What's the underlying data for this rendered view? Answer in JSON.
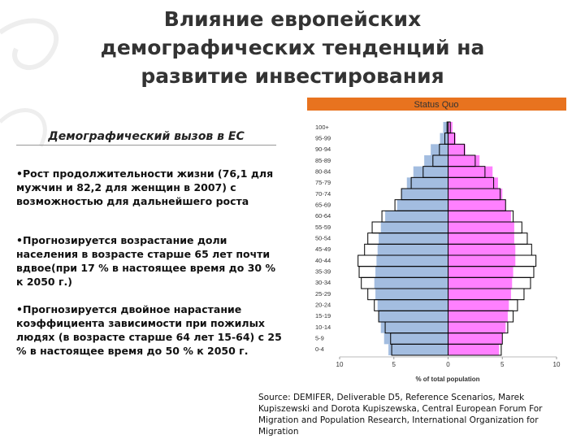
{
  "slide": {
    "title": "Влияние европейских демографических тенденций на развитие инвестирования",
    "subtitle": "Демографический вызов в ЕС",
    "bullets": [
      "•Рост продолжительности жизни (76,1 для мужчин и 82,2 для женщин в 2007) с возможностью для дальнейшего роста",
      "•Прогнозируется возрастание доли населения в возрасте старше 65 лет почти  вдвое(при 17 % в настоящее время до 30 % к 2050 г.)",
      "•Прогнозируется двойное нарастание коэффициента зависимости при пожилых людях (в возрасте старше 64 лет 15-64) с 25 % в настоящее время до 50 % к 2050 г."
    ],
    "source": "Source: DEMIFER, Deliverable D5, Reference Scenarios, Marek Kupiszewski and Dorota Kupiszewska, Central European Forum For Migration and Population Research, International Organization for Migration"
  },
  "chart_data": {
    "type": "pyramid",
    "title": "Status Quo",
    "title_color": "#e8731f",
    "x_label": "% of total population",
    "categories": [
      "100+",
      "95-99",
      "90-94",
      "85-89",
      "80-84",
      "75-79",
      "70-74",
      "65-69",
      "60-64",
      "55-59",
      "50-54",
      "45-49",
      "40-44",
      "35-39",
      "30-34",
      "25-29",
      "20-24",
      "15-19",
      "10-14",
      "5-9",
      "0-4"
    ],
    "series": [
      {
        "color": "#a3bde0",
        "outline": false,
        "values": [
          -0.45,
          -0.75,
          -1.6,
          -2.2,
          -3.2,
          -3.8,
          -4.3,
          -4.7,
          -5.8,
          -6.2,
          -6.4,
          -6.5,
          -6.6,
          -6.7,
          -6.8,
          -6.7,
          -6.5,
          -6.4,
          -6.2,
          -5.9,
          -5.5
        ]
      },
      {
        "color": "#ff80ff",
        "outline": false,
        "values": [
          0.4,
          0.7,
          1.6,
          2.9,
          4.1,
          4.6,
          5.0,
          5.3,
          5.8,
          6.1,
          6.1,
          6.2,
          6.2,
          6.0,
          5.9,
          5.8,
          5.6,
          5.5,
          5.3,
          5.0,
          4.7
        ]
      },
      {
        "color": "#000000",
        "outline": true,
        "values": [
          -0.1,
          -0.3,
          -0.8,
          -1.4,
          -2.3,
          -3.4,
          -4.3,
          -4.9,
          -6.1,
          -7.0,
          -7.4,
          -7.7,
          -8.3,
          -8.2,
          -8.0,
          -7.4,
          -6.8,
          -6.4,
          -5.8,
          -5.3,
          -5.2
        ]
      },
      {
        "color": "#000000",
        "outline": true,
        "values": [
          0.2,
          0.6,
          1.5,
          2.5,
          3.4,
          4.2,
          4.8,
          5.3,
          6.0,
          6.8,
          7.3,
          7.7,
          8.1,
          7.9,
          7.6,
          7.0,
          6.4,
          6.0,
          5.5,
          5.0,
          4.9
        ]
      }
    ],
    "xlim": [
      -10,
      10
    ],
    "xticks": [
      {
        "value": -10,
        "label": "10"
      },
      {
        "value": -5,
        "label": "5"
      },
      0,
      5,
      10
    ]
  }
}
